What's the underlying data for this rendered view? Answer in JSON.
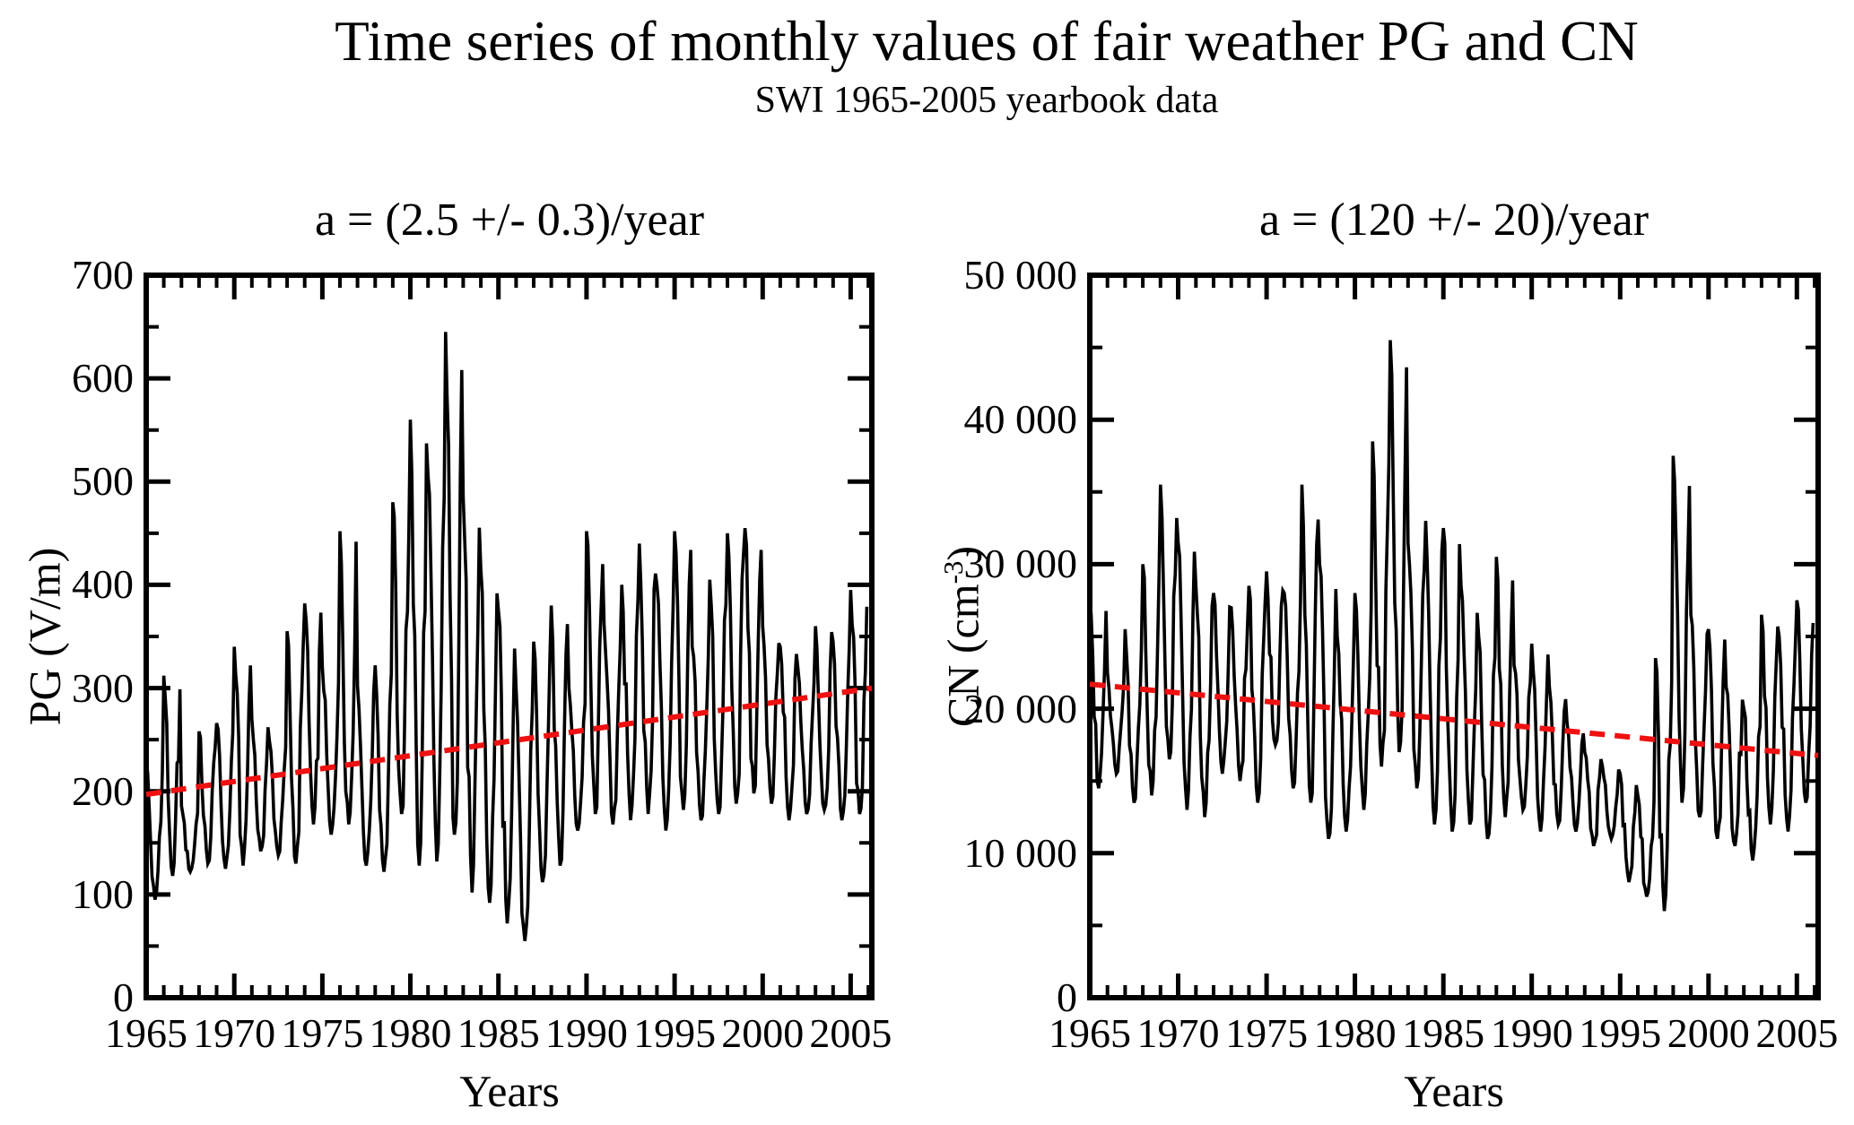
{
  "figure": {
    "title": "Time series of monthly values of fair weather PG and CN",
    "subtitle": "SWI 1965-2005 yearbook data",
    "background_color": "#ffffff",
    "text_color": "#000000",
    "series_color": "#000000",
    "trend_color": "#ee1111"
  },
  "chart_data": [
    {
      "type": "line",
      "name": "PG",
      "title": "a = (2.5 +/- 0.3)/year",
      "slope_per_year": 2.5,
      "slope_error_per_year": 0.3,
      "xlabel": "Years",
      "ylabel": {
        "pre": "PG (V/m",
        "sup": "",
        "post": ")"
      },
      "xlim": [
        1965,
        2006.2
      ],
      "ylim": [
        0,
        700
      ],
      "xticks_major": [
        1965,
        1970,
        1975,
        1980,
        1985,
        1990,
        1995,
        2000,
        2005
      ],
      "xtick_labels": [
        "1965",
        "1970",
        "1975",
        "1980",
        "1985",
        "1990",
        "1995",
        "2000",
        "2005"
      ],
      "xtick_minor_step": 1,
      "ytick_values": [
        0,
        100,
        200,
        300,
        400,
        500,
        600,
        700
      ],
      "ytick_labels": [
        "0",
        "100",
        "200",
        "300",
        "400",
        "500",
        "600",
        "700"
      ],
      "ytick_minor_step": 50,
      "grid": false,
      "legend": false,
      "trend": {
        "style": "dashed",
        "x0": 1965,
        "y0": 197,
        "x1": 2006.2,
        "y1": 300
      },
      "series_description": "Monthly fair-weather potential gradient; winter maxima and summer minima per year (V/m)",
      "annual_envelope_year_min_max": [
        [
          1965,
          95,
          228
        ],
        [
          1966,
          118,
          312
        ],
        [
          1967,
          122,
          186
        ],
        [
          1968,
          130,
          258
        ],
        [
          1969,
          125,
          266
        ],
        [
          1970,
          128,
          340
        ],
        [
          1971,
          142,
          270
        ],
        [
          1972,
          138,
          248
        ],
        [
          1973,
          130,
          355
        ],
        [
          1974,
          168,
          382
        ],
        [
          1975,
          158,
          320
        ],
        [
          1976,
          168,
          452
        ],
        [
          1977,
          128,
          302
        ],
        [
          1978,
          122,
          322
        ],
        [
          1979,
          178,
          480
        ],
        [
          1980,
          128,
          560
        ],
        [
          1981,
          132,
          506
        ],
        [
          1982,
          158,
          645
        ],
        [
          1983,
          102,
          486
        ],
        [
          1984,
          92,
          415
        ],
        [
          1985,
          72,
          375
        ],
        [
          1986,
          55,
          300
        ],
        [
          1987,
          112,
          345
        ],
        [
          1988,
          128,
          380
        ],
        [
          1989,
          162,
          300
        ],
        [
          1990,
          178,
          452
        ],
        [
          1991,
          168,
          362
        ],
        [
          1992,
          172,
          400
        ],
        [
          1993,
          178,
          440
        ],
        [
          1994,
          162,
          400
        ],
        [
          1995,
          182,
          452
        ],
        [
          1996,
          172,
          340
        ],
        [
          1997,
          178,
          405
        ],
        [
          1998,
          188,
          450
        ],
        [
          1999,
          198,
          455
        ],
        [
          2000,
          188,
          360
        ],
        [
          2001,
          172,
          340
        ],
        [
          2002,
          178,
          320
        ],
        [
          2003,
          182,
          360
        ],
        [
          2004,
          172,
          345
        ],
        [
          2005,
          178,
          395
        ]
      ]
    },
    {
      "type": "line",
      "name": "CN",
      "title": "a = (120 +/- 20)/year",
      "slope_per_year": -120,
      "slope_error_per_year": 20,
      "xlabel": "Years",
      "ylabel": {
        "pre": "CN (cm",
        "sup": "-3",
        "post": ")"
      },
      "xlim": [
        1965,
        2006.2
      ],
      "ylim": [
        0,
        50000
      ],
      "xticks_major": [
        1965,
        1970,
        1975,
        1980,
        1985,
        1990,
        1995,
        2000,
        2005
      ],
      "xtick_labels": [
        "1965",
        "1970",
        "1975",
        "1980",
        "1985",
        "1990",
        "1995",
        "2000",
        "2005"
      ],
      "xtick_minor_step": 1,
      "ytick_values": [
        0,
        10000,
        20000,
        30000,
        40000,
        50000
      ],
      "ytick_labels": [
        "0",
        "10 000",
        "20 000",
        "30 000",
        "40 000",
        "50 000"
      ],
      "ytick_minor_step": 5000,
      "grid": false,
      "legend": false,
      "trend": {
        "style": "dashed",
        "x0": 1965,
        "y0": 21700,
        "x1": 2006.2,
        "y1": 16760
      },
      "series_description": "Monthly condensation-nuclei concentration; winter maxima and summer minima per year (cm^-3)",
      "annual_envelope_year_min_max": [
        [
          1965,
          14500,
          28000
        ],
        [
          1966,
          15500,
          22500
        ],
        [
          1967,
          13500,
          25500
        ],
        [
          1968,
          14000,
          30000
        ],
        [
          1969,
          16500,
          35500
        ],
        [
          1970,
          13000,
          31500
        ],
        [
          1971,
          12500,
          28500
        ],
        [
          1972,
          15500,
          28000
        ],
        [
          1973,
          15000,
          27000
        ],
        [
          1974,
          13500,
          28500
        ],
        [
          1975,
          17500,
          29500
        ],
        [
          1976,
          14500,
          28000
        ],
        [
          1977,
          13500,
          35500
        ],
        [
          1978,
          11000,
          30000
        ],
        [
          1979,
          11500,
          25000
        ],
        [
          1980,
          13000,
          28000
        ],
        [
          1981,
          16000,
          38500
        ],
        [
          1982,
          17000,
          45500
        ],
        [
          1983,
          14500,
          31500
        ],
        [
          1984,
          12000,
          33000
        ],
        [
          1985,
          11500,
          32500
        ],
        [
          1986,
          12000,
          28500
        ],
        [
          1987,
          11000,
          25000
        ],
        [
          1988,
          12500,
          30500
        ],
        [
          1989,
          13000,
          23000
        ],
        [
          1990,
          11500,
          24500
        ],
        [
          1991,
          12000,
          21500
        ],
        [
          1992,
          11500,
          19000
        ],
        [
          1993,
          10500,
          17000
        ],
        [
          1994,
          11000,
          16000
        ],
        [
          1995,
          8000,
          15500
        ],
        [
          1996,
          7000,
          14000
        ],
        [
          1997,
          6000,
          23500
        ],
        [
          1998,
          13500,
          37500
        ],
        [
          1999,
          12500,
          26500
        ],
        [
          2000,
          11000,
          25500
        ],
        [
          2001,
          10500,
          21500
        ],
        [
          2002,
          9500,
          20000
        ],
        [
          2003,
          12000,
          26500
        ],
        [
          2004,
          11500,
          25000
        ],
        [
          2005,
          13500,
          27500
        ]
      ]
    }
  ]
}
